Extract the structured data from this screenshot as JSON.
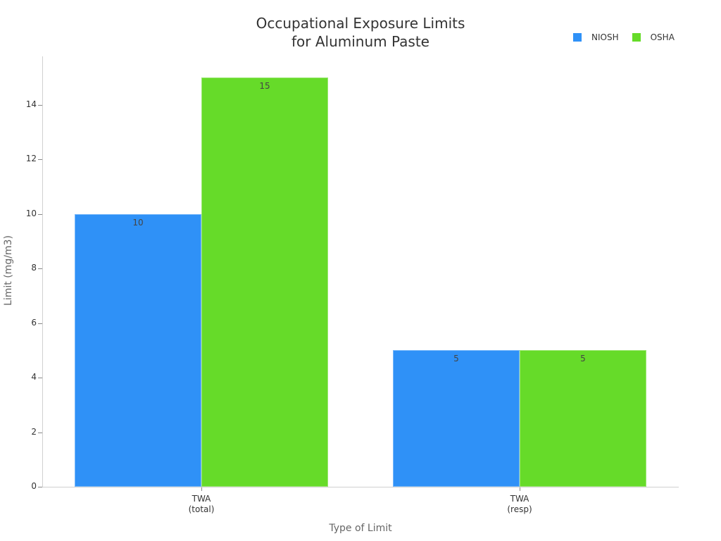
{
  "chart_data": {
    "type": "bar",
    "title": "Occupational Exposure Limits for Aluminum Paste",
    "title_lines": [
      "Occupational Exposure Limits",
      "for Aluminum Paste"
    ],
    "xlabel": "Type of Limit",
    "ylabel": "Limit (mg/m3)",
    "categories": [
      "TWA (total)",
      "TWA (resp)"
    ],
    "category_lines": [
      [
        "TWA",
        "(total)"
      ],
      [
        "TWA",
        "(resp)"
      ]
    ],
    "series": [
      {
        "name": "NIOSH",
        "color": "#2f91f7",
        "values": [
          10,
          5
        ]
      },
      {
        "name": "OSHA",
        "color": "#66db29",
        "values": [
          15,
          5
        ]
      }
    ],
    "ylim": [
      0,
      15.8
    ],
    "yticks": [
      0,
      2,
      4,
      6,
      8,
      10,
      12,
      14
    ],
    "grid": false,
    "legend_position": "top-right",
    "data_labels": true
  }
}
